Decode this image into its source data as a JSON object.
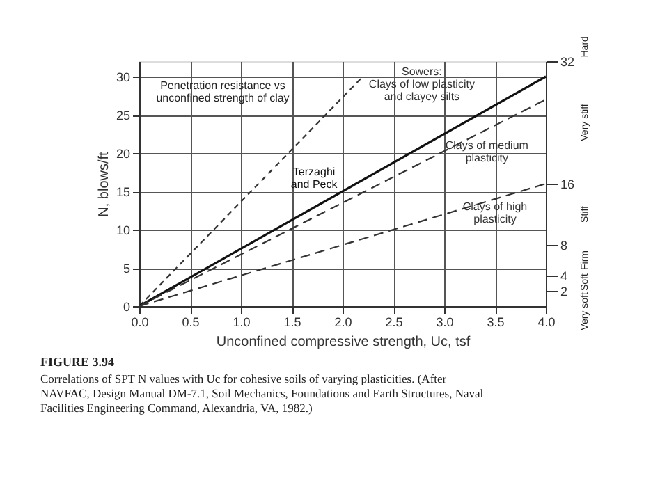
{
  "chart_data": {
    "type": "line",
    "title": "Penetration resistance vs\nunconfined strength of clay",
    "xlabel": "Unconfined compressive strength, Uc, tsf",
    "ylabel": "N, blows/ft",
    "xlim": [
      0,
      4.0
    ],
    "xticks": [
      {
        "value": 0,
        "label": "0.0"
      },
      0.5,
      {
        "value": 1,
        "label": "1.0"
      },
      1.5,
      {
        "value": 2,
        "label": "2.0"
      },
      2.5,
      {
        "value": 3,
        "label": "3.0"
      },
      3.5,
      {
        "value": 4,
        "label": "4.0"
      }
    ],
    "ylim": [
      0,
      32
    ],
    "yticks": [
      0,
      5,
      10,
      15,
      20,
      25,
      30
    ],
    "y2lim": [
      0,
      32
    ],
    "y2ticks": [
      2,
      4,
      8,
      16,
      32
    ],
    "grid": true,
    "marker": "none",
    "series": [
      {
        "name": "Sowers:\nClays of low plasticity\nand clayey silts",
        "color": "#333333",
        "line_style": "dotted",
        "x": [
          0,
          2.2
        ],
        "values": [
          0,
          30
        ]
      },
      {
        "name": "Terzaghi\nand Peck",
        "color": "#111111",
        "line_style": "solid",
        "x": [
          0,
          4.0
        ],
        "values": [
          0,
          30
        ]
      },
      {
        "name": "Clays of medium\nplasticity",
        "color": "#333333",
        "line_style": "dashed",
        "x": [
          0,
          4.0
        ],
        "values": [
          0,
          27
        ]
      },
      {
        "name": "Clays of high\nplasticity",
        "color": "#333333",
        "line_style": "dashed",
        "x": [
          0,
          4.0
        ],
        "values": [
          0,
          16
        ]
      }
    ],
    "annotations": [
      "Very soft",
      "Soft",
      "Firm",
      "Stiff",
      "Very stiff",
      "Hard",
      "FIGURE 3.94",
      "Correlations of SPT N values with Uc for cohesive soils of varying plasticities. (After NAVFAC, Design Manual DM-7.1, Soil Mechanics, Foundations and Earth Structures, Naval Facilities Engineering Command, Alexandria, VA, 1982.)"
    ]
  }
}
